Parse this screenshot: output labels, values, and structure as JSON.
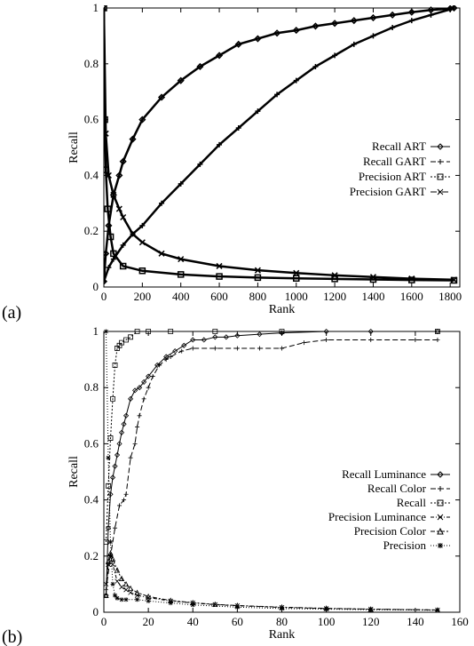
{
  "chart_data": [
    {
      "panel_label": "(a)",
      "type": "line",
      "xlabel": "Rank",
      "ylabel": "Recall",
      "xlim": [
        0,
        1850
      ],
      "ylim": [
        0,
        1
      ],
      "xticks": [
        0,
        200,
        400,
        600,
        800,
        1000,
        1200,
        1400,
        1600,
        1800
      ],
      "yticks": [
        0,
        0.2,
        0.4,
        0.6,
        0.8,
        1
      ],
      "legend_position": "right-middle",
      "series": [
        {
          "name": "Recall ART",
          "marker": "diamond",
          "dash": "",
          "x": [
            0,
            10,
            25,
            50,
            80,
            100,
            150,
            200,
            300,
            400,
            500,
            600,
            700,
            800,
            900,
            1000,
            1100,
            1200,
            1300,
            1400,
            1500,
            1600,
            1700,
            1800,
            1820
          ],
          "y": [
            0.02,
            0.12,
            0.22,
            0.33,
            0.4,
            0.45,
            0.53,
            0.6,
            0.68,
            0.74,
            0.79,
            0.83,
            0.87,
            0.89,
            0.91,
            0.92,
            0.935,
            0.945,
            0.955,
            0.965,
            0.975,
            0.985,
            0.993,
            0.998,
            1.0
          ]
        },
        {
          "name": "Recall GART",
          "marker": "plus",
          "dash": "6,3",
          "x": [
            0,
            25,
            50,
            100,
            150,
            200,
            300,
            400,
            500,
            600,
            700,
            800,
            900,
            1000,
            1100,
            1200,
            1300,
            1400,
            1500,
            1600,
            1700,
            1800,
            1820
          ],
          "y": [
            0.02,
            0.07,
            0.1,
            0.15,
            0.19,
            0.22,
            0.3,
            0.37,
            0.44,
            0.51,
            0.57,
            0.63,
            0.69,
            0.74,
            0.79,
            0.83,
            0.87,
            0.9,
            0.93,
            0.955,
            0.975,
            0.995,
            1.0
          ]
        },
        {
          "name": "Precision ART",
          "marker": "square",
          "dash": "2,2",
          "x": [
            0,
            5,
            10,
            20,
            35,
            50,
            100,
            200,
            400,
            600,
            800,
            1000,
            1200,
            1400,
            1600,
            1820
          ],
          "y": [
            1.0,
            0.6,
            0.42,
            0.28,
            0.18,
            0.12,
            0.075,
            0.058,
            0.045,
            0.038,
            0.034,
            0.031,
            0.029,
            0.027,
            0.025,
            0.024
          ]
        },
        {
          "name": "Precision GART",
          "marker": "cross",
          "dash": "7,2,2,2",
          "x": [
            0,
            10,
            25,
            50,
            80,
            100,
            150,
            200,
            300,
            400,
            600,
            800,
            1000,
            1200,
            1400,
            1600,
            1820
          ],
          "y": [
            1.0,
            0.55,
            0.4,
            0.33,
            0.28,
            0.25,
            0.19,
            0.16,
            0.12,
            0.1,
            0.075,
            0.06,
            0.05,
            0.042,
            0.036,
            0.03,
            0.026
          ]
        }
      ]
    },
    {
      "panel_label": "(b)",
      "type": "line",
      "xlabel": "Rank",
      "ylabel": "Recall",
      "xlim": [
        0,
        160
      ],
      "ylim": [
        0,
        1
      ],
      "xticks": [
        0,
        20,
        40,
        60,
        80,
        100,
        120,
        140,
        160
      ],
      "yticks": [
        0,
        0.2,
        0.4,
        0.6,
        0.8,
        1
      ],
      "legend_position": "right-middle",
      "series": [
        {
          "name": "Recall Luminance",
          "marker": "diamond",
          "dash": "",
          "x": [
            1,
            2,
            3,
            4,
            5,
            6,
            7,
            8,
            9,
            10,
            12,
            14,
            16,
            18,
            20,
            24,
            28,
            32,
            36,
            40,
            45,
            50,
            55,
            60,
            70,
            80,
            100,
            120,
            150
          ],
          "y": [
            0.06,
            0.3,
            0.42,
            0.48,
            0.52,
            0.56,
            0.6,
            0.64,
            0.67,
            0.7,
            0.76,
            0.79,
            0.8,
            0.82,
            0.84,
            0.88,
            0.91,
            0.93,
            0.95,
            0.97,
            0.97,
            0.98,
            0.98,
            0.985,
            0.99,
            0.995,
            1.0,
            1.0,
            1.0
          ]
        },
        {
          "name": "Recall Color",
          "marker": "plus",
          "dash": "6,3",
          "x": [
            1,
            3,
            5,
            7,
            9,
            10,
            12,
            14,
            15,
            16,
            18,
            20,
            22,
            25,
            28,
            30,
            35,
            40,
            50,
            60,
            70,
            80,
            90,
            100,
            120,
            140,
            150
          ],
          "y": [
            0.08,
            0.2,
            0.3,
            0.38,
            0.4,
            0.42,
            0.55,
            0.6,
            0.66,
            0.7,
            0.76,
            0.8,
            0.84,
            0.88,
            0.9,
            0.91,
            0.93,
            0.94,
            0.94,
            0.94,
            0.94,
            0.94,
            0.96,
            0.97,
            0.97,
            0.97,
            0.97
          ]
        },
        {
          "name": "Recall",
          "marker": "square",
          "dash": "2,2",
          "x": [
            1,
            2,
            3,
            4,
            5,
            6,
            7,
            8,
            10,
            12,
            15,
            20,
            30,
            50,
            80,
            150
          ],
          "y": [
            0.25,
            0.45,
            0.62,
            0.76,
            0.88,
            0.94,
            0.95,
            0.96,
            0.97,
            0.98,
            1.0,
            1.0,
            1.0,
            1.0,
            1.0,
            1.0
          ]
        },
        {
          "name": "Precision Luminance",
          "marker": "cross",
          "dash": "4,2,1,2",
          "x": [
            1,
            2,
            3,
            4,
            6,
            8,
            10,
            12,
            15,
            20,
            30,
            40,
            50,
            60,
            80,
            100,
            120,
            150
          ],
          "y": [
            0.1,
            0.17,
            0.2,
            0.17,
            0.11,
            0.09,
            0.08,
            0.07,
            0.06,
            0.052,
            0.04,
            0.033,
            0.027,
            0.023,
            0.017,
            0.013,
            0.011,
            0.008
          ]
        },
        {
          "name": "Precision Color",
          "marker": "triangle",
          "dash": "5,2,2,2",
          "x": [
            1,
            2,
            3,
            4,
            6,
            8,
            10,
            12,
            15,
            20,
            30,
            40,
            50,
            60,
            80,
            100,
            120,
            150
          ],
          "y": [
            0.06,
            0.18,
            0.21,
            0.19,
            0.15,
            0.12,
            0.1,
            0.085,
            0.07,
            0.056,
            0.042,
            0.034,
            0.028,
            0.024,
            0.018,
            0.014,
            0.011,
            0.008
          ]
        },
        {
          "name": "Precision",
          "marker": "star",
          "dash": "1,2",
          "x": [
            1,
            2,
            3,
            4,
            5,
            6,
            8,
            10,
            15,
            20,
            30,
            40,
            60,
            80,
            100,
            120,
            150
          ],
          "y": [
            1.0,
            0.55,
            0.25,
            0.1,
            0.06,
            0.05,
            0.045,
            0.045,
            0.045,
            0.04,
            0.033,
            0.026,
            0.018,
            0.013,
            0.011,
            0.009,
            0.007
          ]
        }
      ]
    }
  ]
}
